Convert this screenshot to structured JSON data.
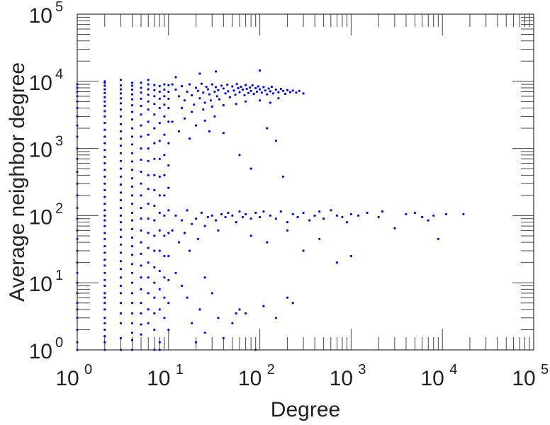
{
  "chart_data": {
    "type": "scatter",
    "title": "",
    "xlabel": "Degree",
    "ylabel": "Average neighbor degree",
    "xscale": "log",
    "yscale": "log",
    "xlim": [
      1,
      100000
    ],
    "ylim": [
      1,
      100000
    ],
    "grid": false,
    "marker_color": "#0000ff",
    "x_ticks": [
      {
        "base": "10",
        "exp": "0"
      },
      {
        "base": "10",
        "exp": "1"
      },
      {
        "base": "10",
        "exp": "2"
      },
      {
        "base": "10",
        "exp": "3"
      },
      {
        "base": "10",
        "exp": "4"
      },
      {
        "base": "10",
        "exp": "5"
      }
    ],
    "y_ticks": [
      {
        "base": "10",
        "exp": "0"
      },
      {
        "base": "10",
        "exp": "1"
      },
      {
        "base": "10",
        "exp": "2"
      },
      {
        "base": "10",
        "exp": "3"
      },
      {
        "base": "10",
        "exp": "4"
      },
      {
        "base": "10",
        "exp": "5"
      }
    ],
    "stripes": [
      {
        "x": 1,
        "y": [
          1,
          1.3,
          2,
          3,
          4,
          5,
          7,
          10,
          14,
          20,
          30,
          45,
          60,
          90,
          130,
          200,
          300,
          450,
          700,
          1000,
          1500,
          2200,
          3000,
          4000,
          5000,
          6000,
          7000,
          8000,
          9000
        ]
      },
      {
        "x": 2,
        "y": [
          1,
          1.3,
          1.6,
          2,
          2.5,
          3,
          4,
          5,
          6,
          7,
          9,
          11,
          14,
          18,
          22,
          28,
          35,
          45,
          55,
          70,
          85,
          100,
          120,
          150,
          190,
          240,
          300,
          380,
          480,
          600,
          750,
          950,
          1200,
          1500,
          1900,
          2400,
          3000,
          3600,
          4300,
          5000,
          5800,
          6700,
          7600,
          8600,
          9500,
          10000
        ]
      },
      {
        "x": 3,
        "y": [
          1,
          1.5,
          2.5,
          3.5,
          5,
          7,
          9,
          12,
          16,
          21,
          28,
          37,
          48,
          62,
          80,
          100,
          130,
          170,
          220,
          290,
          380,
          500,
          650,
          850,
          1100,
          1400,
          1800,
          2300,
          3000,
          3800,
          4700,
          5600,
          6600,
          7600,
          8700,
          10500
        ]
      },
      {
        "x": 4,
        "y": [
          1,
          1.4,
          1.8,
          2.5,
          3.5,
          5,
          7,
          10,
          14,
          19,
          26,
          35,
          47,
          63,
          85,
          110,
          150,
          200,
          270,
          360,
          480,
          640,
          850,
          1150,
          1500,
          2000,
          2700,
          3500,
          4400,
          5400,
          6400,
          7500,
          8600,
          9500
        ]
      },
      {
        "x": 5,
        "y": [
          1.7,
          2.4,
          3.5,
          5,
          8,
          12,
          18,
          27,
          40,
          60,
          90,
          130,
          200,
          300,
          450,
          680,
          1000,
          1500,
          2200,
          3200,
          4300,
          5500,
          6800,
          8000,
          9500
        ]
      },
      {
        "x": 6,
        "y": [
          2.5,
          4,
          7,
          12,
          20,
          33,
          55,
          90,
          150,
          250,
          400,
          650,
          1000,
          1600,
          2500,
          3800,
          5000,
          6300,
          7600,
          9000,
          10500
        ]
      },
      {
        "x": 7,
        "y": [
          1,
          2,
          3.5,
          6,
          10,
          17,
          30,
          50,
          85,
          140,
          240,
          400,
          700,
          1200,
          2000,
          3200,
          4600,
          6000,
          7400,
          8800
        ]
      },
      {
        "x": 8,
        "y": [
          1,
          1.3,
          4,
          8,
          15,
          30,
          60,
          110,
          200,
          380,
          700,
          1300,
          2400,
          4000,
          5500,
          7000,
          8500
        ]
      },
      {
        "x": 9,
        "y": [
          3,
          6,
          12,
          25,
          50,
          100,
          200,
          400,
          800,
          1600,
          3000,
          4500,
          6000,
          7500,
          9000
        ]
      },
      {
        "x": 10,
        "y": [
          2,
          5,
          11,
          25,
          55,
          120,
          260,
          560,
          1200,
          2500,
          4000,
          5500,
          7000,
          8800
        ]
      }
    ],
    "points": [
      [
        11,
        9000
      ],
      [
        12,
        7500
      ],
      [
        13,
        6000
      ],
      [
        12,
        11500
      ],
      [
        14,
        8500
      ],
      [
        15,
        5200
      ],
      [
        16,
        7000
      ],
      [
        17,
        9000
      ],
      [
        18,
        6200
      ],
      [
        19,
        4500
      ],
      [
        20,
        8000
      ],
      [
        21,
        7200
      ],
      [
        22,
        5600
      ],
      [
        23,
        9200
      ],
      [
        24,
        6800
      ],
      [
        25,
        4800
      ],
      [
        26,
        8300
      ],
      [
        27,
        7600
      ],
      [
        28,
        6400
      ],
      [
        29,
        5200
      ],
      [
        30,
        9000
      ],
      [
        32,
        7000
      ],
      [
        33,
        8200
      ],
      [
        34,
        6000
      ],
      [
        35,
        7400
      ],
      [
        36,
        5400
      ],
      [
        38,
        8600
      ],
      [
        40,
        7800
      ],
      [
        42,
        6600
      ],
      [
        44,
        8900
      ],
      [
        45,
        7100
      ],
      [
        47,
        5800
      ],
      [
        50,
        8400
      ],
      [
        52,
        7300
      ],
      [
        54,
        6300
      ],
      [
        56,
        9100
      ],
      [
        58,
        7900
      ],
      [
        60,
        6900
      ],
      [
        62,
        8300
      ],
      [
        65,
        7500
      ],
      [
        68,
        6200
      ],
      [
        70,
        8800
      ],
      [
        72,
        7700
      ],
      [
        75,
        6700
      ],
      [
        78,
        8100
      ],
      [
        80,
        7200
      ],
      [
        83,
        8700
      ],
      [
        86,
        6500
      ],
      [
        90,
        7900
      ],
      [
        93,
        7000
      ],
      [
        96,
        8400
      ],
      [
        100,
        7600
      ],
      [
        105,
        6800
      ],
      [
        110,
        8200
      ],
      [
        115,
        7300
      ],
      [
        120,
        6400
      ],
      [
        125,
        7800
      ],
      [
        130,
        7100
      ],
      [
        135,
        8300
      ],
      [
        140,
        6600
      ],
      [
        150,
        7500
      ],
      [
        160,
        6900
      ],
      [
        170,
        7700
      ],
      [
        180,
        7200
      ],
      [
        190,
        6500
      ],
      [
        200,
        7400
      ],
      [
        215,
        6900
      ],
      [
        230,
        7300
      ],
      [
        250,
        6800
      ],
      [
        270,
        7200
      ],
      [
        300,
        6600
      ],
      [
        14,
        4000
      ],
      [
        18,
        3500
      ],
      [
        24,
        3800
      ],
      [
        30,
        4200
      ],
      [
        40,
        4400
      ],
      [
        55,
        4600
      ],
      [
        70,
        5000
      ],
      [
        100,
        5200
      ],
      [
        130,
        4800
      ],
      [
        160,
        5600
      ],
      [
        33,
        14000
      ],
      [
        22,
        13000
      ],
      [
        100,
        14500
      ],
      [
        11,
        2500
      ],
      [
        13,
        1800
      ],
      [
        15,
        2800
      ],
      [
        17,
        1400
      ],
      [
        20,
        2200
      ],
      [
        25,
        2600
      ],
      [
        28,
        1800
      ],
      [
        32,
        3000
      ],
      [
        40,
        1700
      ],
      [
        60,
        800
      ],
      [
        80,
        500
      ],
      [
        120,
        2000
      ],
      [
        150,
        1300
      ],
      [
        180,
        380
      ],
      [
        11,
        60
      ],
      [
        12,
        100
      ],
      [
        13,
        40
      ],
      [
        14,
        85
      ],
      [
        15,
        55
      ],
      [
        16,
        120
      ],
      [
        17,
        30
      ],
      [
        18,
        75
      ],
      [
        20,
        90
      ],
      [
        21,
        45
      ],
      [
        23,
        110
      ],
      [
        25,
        70
      ],
      [
        27,
        95
      ],
      [
        30,
        100
      ],
      [
        33,
        85
      ],
      [
        35,
        60
      ],
      [
        38,
        105
      ],
      [
        42,
        95
      ],
      [
        45,
        110
      ],
      [
        50,
        100
      ],
      [
        55,
        80
      ],
      [
        60,
        115
      ],
      [
        65,
        95
      ],
      [
        70,
        105
      ],
      [
        80,
        90
      ],
      [
        90,
        110
      ],
      [
        100,
        95
      ],
      [
        110,
        115
      ],
      [
        130,
        100
      ],
      [
        150,
        90
      ],
      [
        170,
        115
      ],
      [
        200,
        80
      ],
      [
        230,
        105
      ],
      [
        260,
        95
      ],
      [
        300,
        110
      ],
      [
        350,
        85
      ],
      [
        400,
        100
      ],
      [
        450,
        115
      ],
      [
        500,
        90
      ],
      [
        600,
        120
      ],
      [
        700,
        100
      ],
      [
        800,
        95
      ],
      [
        900,
        80
      ],
      [
        1000,
        105
      ],
      [
        1200,
        100
      ],
      [
        1500,
        110
      ],
      [
        2000,
        95
      ],
      [
        2200,
        115
      ],
      [
        3000,
        65
      ],
      [
        4000,
        105
      ],
      [
        5000,
        110
      ],
      [
        6000,
        95
      ],
      [
        7000,
        85
      ],
      [
        8000,
        100
      ],
      [
        9000,
        45
      ],
      [
        11000,
        105
      ],
      [
        17000,
        105
      ],
      [
        300,
        30
      ],
      [
        450,
        45
      ],
      [
        700,
        20
      ],
      [
        1000,
        25
      ],
      [
        200,
        60
      ],
      [
        120,
        40
      ],
      [
        80,
        50
      ],
      [
        12,
        14
      ],
      [
        14,
        9
      ],
      [
        16,
        6
      ],
      [
        18,
        2.5
      ],
      [
        22,
        4
      ],
      [
        25,
        12
      ],
      [
        30,
        7
      ],
      [
        35,
        3
      ],
      [
        40,
        1.5
      ],
      [
        50,
        2.5
      ],
      [
        60,
        4
      ],
      [
        70,
        3.5
      ],
      [
        90,
        1
      ],
      [
        110,
        4.5
      ],
      [
        150,
        3
      ],
      [
        200,
        6
      ],
      [
        230,
        5
      ],
      [
        55,
        3.5
      ],
      [
        25,
        1.8
      ],
      [
        20,
        1.3
      ]
    ]
  }
}
